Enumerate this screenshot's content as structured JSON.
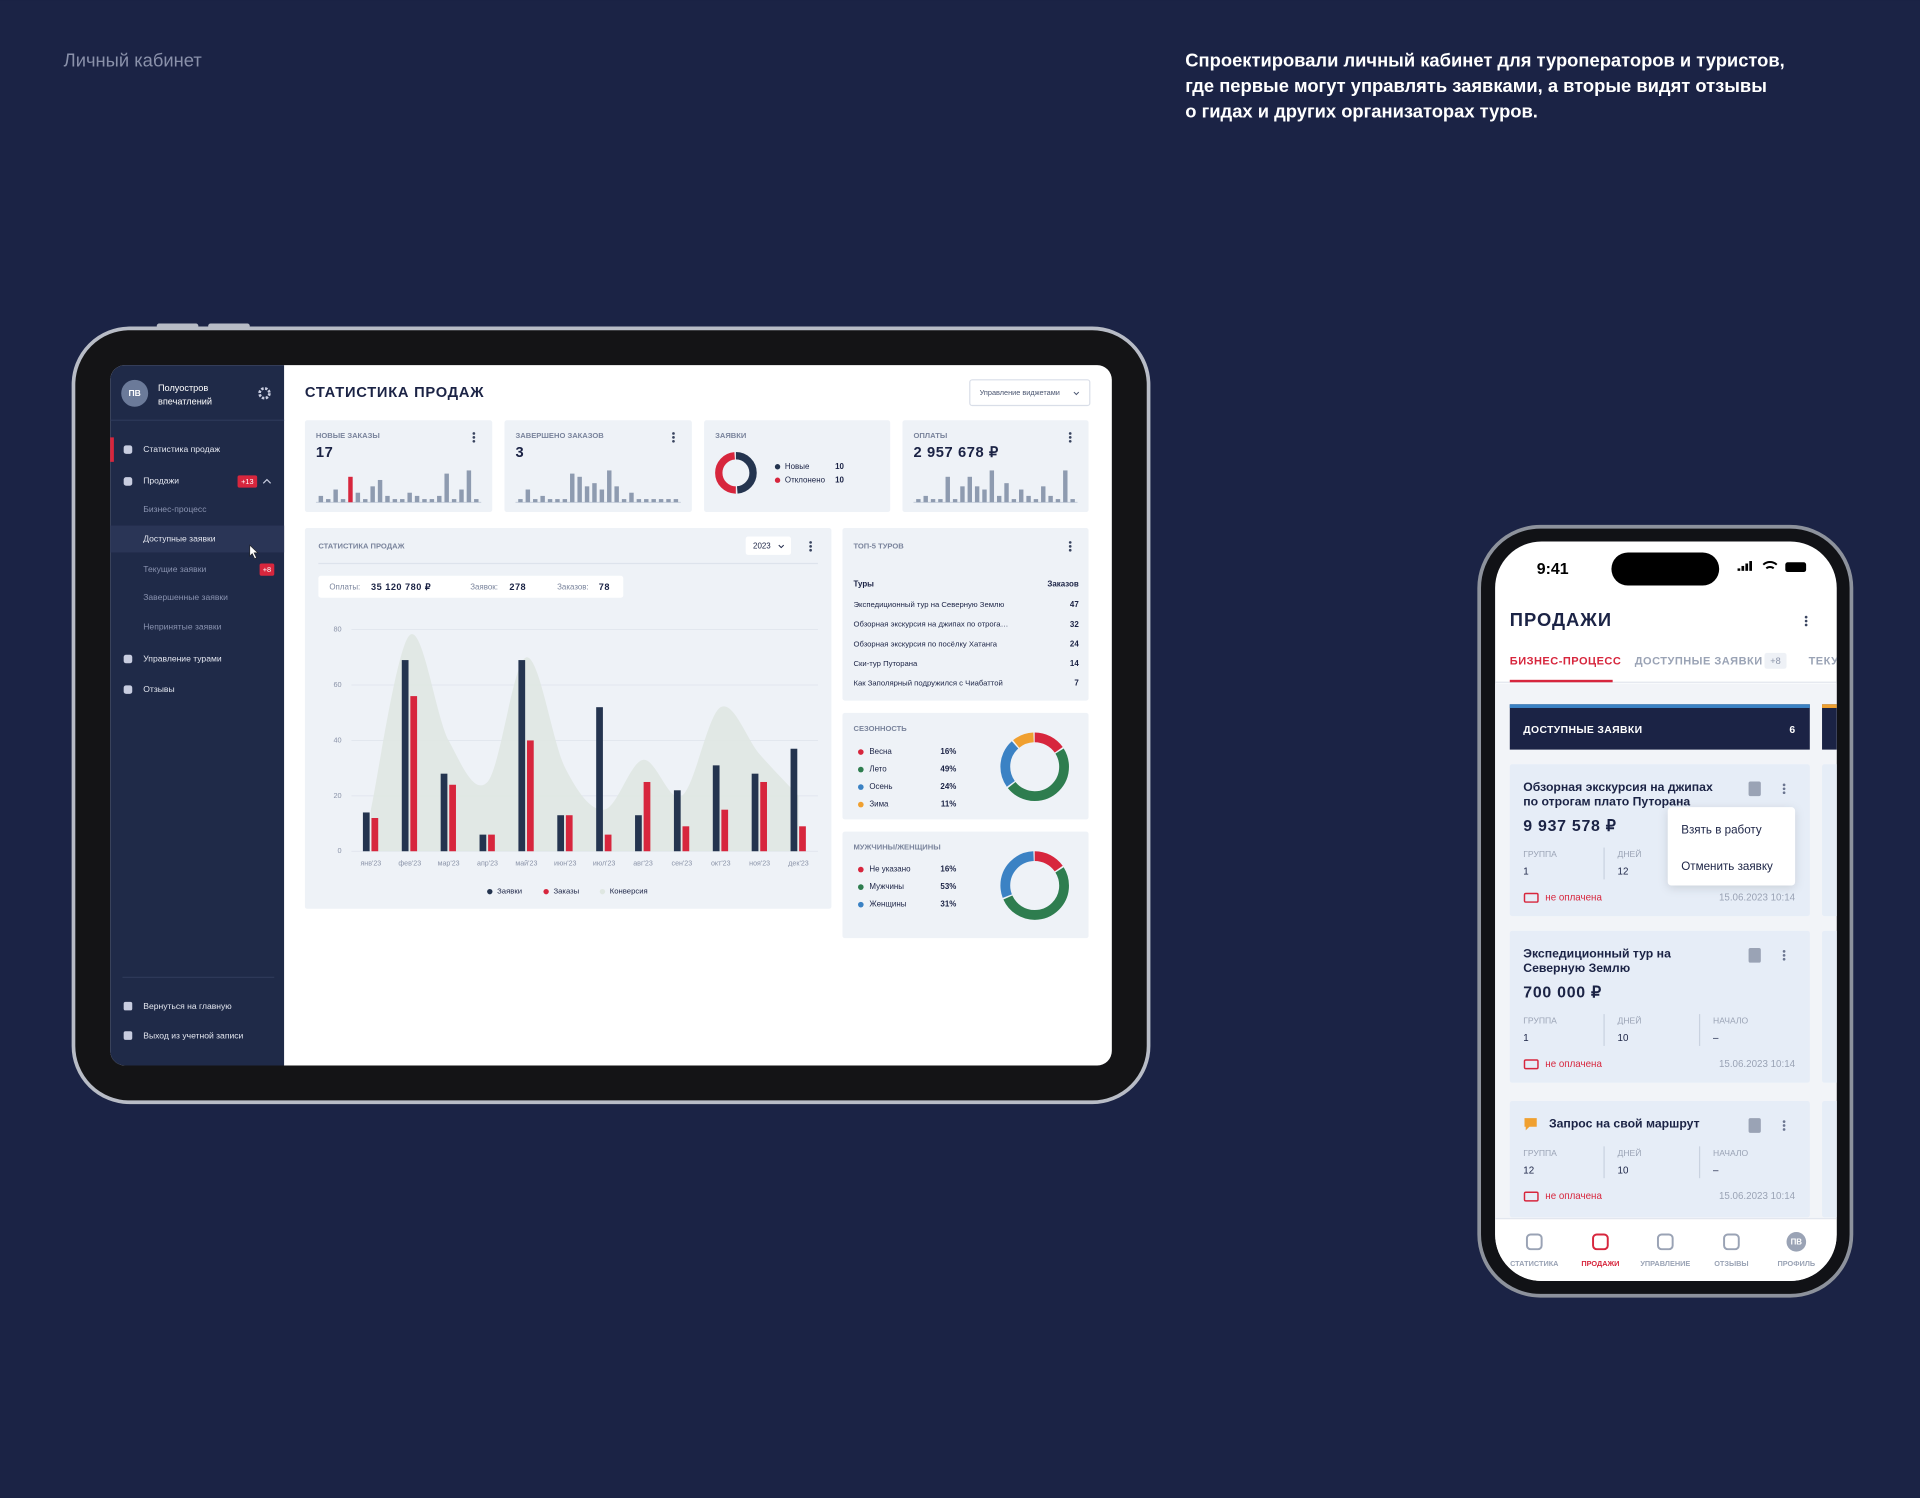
{
  "header": {
    "title": "Личный кабинет",
    "description": [
      "Спроектировали личный кабинет для туроператоров и туристов,",
      "где первые могут управлять заявками, а вторые видят отзывы",
      "о гидах и других организаторах туров."
    ]
  },
  "tablet": {
    "sidebar": {
      "avatar": "ПВ",
      "company": [
        "Полуостров",
        "впечатлений"
      ],
      "menu": [
        {
          "label": "Статистика продаж"
        },
        {
          "label": "Продажи",
          "badge": "+13"
        },
        {
          "label": "Бизнес-процесс"
        },
        {
          "label": "Доступные заявки"
        },
        {
          "label": "Текущие заявки",
          "badge": "+8"
        },
        {
          "label": "Завершенные заявки"
        },
        {
          "label": "Непринятые заявки"
        },
        {
          "label": "Управление турами"
        },
        {
          "label": "Отзывы"
        }
      ],
      "footer": [
        "Вернуться на главную",
        "Выход из учетной записи"
      ]
    },
    "title": "СТАТИСТИКА ПРОДАЖ",
    "widgets_button": "Управление виджетами",
    "cards": [
      {
        "title": "НОВЫЕ ЗАКАЗЫ",
        "value": "17",
        "color": "#8e9bb0",
        "highlight": {
          "index": 4,
          "color": "#d7263d"
        },
        "bars": [
          2,
          1,
          4,
          1,
          8,
          3,
          1,
          5,
          7,
          2,
          1,
          1,
          3,
          2,
          1,
          1,
          2,
          9,
          1,
          4,
          10,
          1
        ]
      },
      {
        "title": "ЗАВЕРШЕНО ЗАКАЗОВ",
        "value": "3",
        "color": "#8e9bb0",
        "bars": [
          1,
          4,
          1,
          2,
          1,
          1,
          1,
          9,
          8,
          5,
          6,
          4,
          10,
          5,
          1,
          3,
          1,
          1,
          1,
          1,
          1,
          1
        ]
      },
      {
        "title": "ЗАЯВКИ",
        "type": "pie",
        "categories": [
          "Новые",
          "Отклонено"
        ],
        "values": [
          10,
          10
        ],
        "colors": [
          "#24344f",
          "#d7263d"
        ]
      },
      {
        "title": "ОПЛАТЫ",
        "value": "2 957 678 ₽",
        "color": "#8e9bb0",
        "bars": [
          1,
          2,
          1,
          1,
          8,
          1,
          5,
          8,
          5,
          4,
          10,
          2,
          6,
          1,
          4,
          2,
          1,
          5,
          2,
          1,
          10,
          1
        ]
      }
    ],
    "sales_chart": {
      "type": "bar",
      "title": "СТАТИСТИКА ПРОДАЖ",
      "year": "2023",
      "summary": [
        {
          "label": "Оплаты:",
          "value": "35 120 780 ₽"
        },
        {
          "label": "Заявок:",
          "value": "278"
        },
        {
          "label": "Заказов:",
          "value": "78"
        }
      ],
      "categories": [
        "янв'23",
        "фев'23",
        "мар'23",
        "апр'23",
        "май'23",
        "июн'23",
        "июл'23",
        "авг'23",
        "сен'23",
        "окт'23",
        "ноя'23",
        "дек'23"
      ],
      "series": [
        {
          "name": "Заявки",
          "type": "bar",
          "color": "#24344f",
          "values": [
            14,
            69,
            28,
            6,
            69,
            13,
            52,
            13,
            22,
            31,
            28,
            37
          ]
        },
        {
          "name": "Заказы",
          "type": "bar",
          "color": "#d7263d",
          "values": [
            12,
            56,
            24,
            6,
            40,
            13,
            6,
            25,
            9,
            15,
            25,
            9
          ]
        },
        {
          "name": "Конверсия",
          "type": "area",
          "color": "#dfe7e2",
          "values": [
            15,
            78,
            40,
            25,
            70,
            30,
            15,
            33,
            20,
            52,
            35,
            20
          ]
        }
      ],
      "ylim": [
        0,
        80
      ],
      "yticks": [
        0,
        20,
        40,
        60,
        80
      ],
      "grid": true
    },
    "top_tours": {
      "title": "ТОП-5 ТУРОВ",
      "columns": [
        "Туры",
        "Заказов"
      ],
      "rows": [
        [
          "Экспедиционный тур на Северную Землю",
          "47"
        ],
        [
          "Обзорная экскурсия на джипах по отрога…",
          "32"
        ],
        [
          "Обзорная экскурсия по посёлку Хатанга",
          "24"
        ],
        [
          "Ски-тур Путорана",
          "14"
        ],
        [
          "Как Заполярный подружился с Чиабаттой",
          "7"
        ]
      ]
    },
    "seasonality": {
      "type": "pie",
      "title": "СЕЗОННОСТЬ",
      "categories": [
        "Весна",
        "Лето",
        "Осень",
        "Зима"
      ],
      "values": [
        16,
        49,
        24,
        11
      ],
      "value_labels": [
        "16%",
        "49%",
        "24%",
        "11%"
      ],
      "colors": [
        "#d7263d",
        "#2e7d4f",
        "#3b82c4",
        "#f0a030"
      ]
    },
    "gender": {
      "type": "pie",
      "title": "МУЖЧИНЫ/ЖЕНЩИНЫ",
      "categories": [
        "Не указано",
        "Мужчины",
        "Женщины"
      ],
      "values": [
        16,
        53,
        31
      ],
      "value_labels": [
        "16%",
        "53%",
        "31%"
      ],
      "colors": [
        "#d7263d",
        "#2e7d4f",
        "#3b82c4"
      ]
    }
  },
  "phone": {
    "time": "9:41",
    "title": "ПРОДАЖИ",
    "tabs": [
      {
        "label": "БИЗНЕС-ПРОЦЕСС"
      },
      {
        "label": "ДОСТУПНЫЕ ЗАЯВКИ",
        "badge": "+8"
      },
      {
        "label": "ТЕКУЩИЕ ЗАЯВКИ"
      }
    ],
    "column": {
      "title": "ДОСТУПНЫЕ ЗАЯВКИ",
      "count": "6"
    },
    "cards": [
      {
        "title": [
          "Обзорная экскурсия на джипах",
          "по отрогам плато Путорана"
        ],
        "price": "9 937 578 ₽",
        "fields": [
          {
            "label": "ГРУППА",
            "value": "1"
          },
          {
            "label": "ДНЕЙ",
            "value": "12"
          }
        ],
        "status": "не оплачена",
        "date": "15.06.2023 10:14",
        "menu": [
          "Взять в работу",
          "Отменить заявку"
        ]
      },
      {
        "title": [
          "Экспедиционный тур на",
          "Северную Землю"
        ],
        "price": "700 000 ₽",
        "fields": [
          {
            "label": "ГРУППА",
            "value": "1"
          },
          {
            "label": "ДНЕЙ",
            "value": "10"
          },
          {
            "label": "НАЧАЛО",
            "value": "–"
          }
        ],
        "status": "не оплачена",
        "date": "15.06.2023 10:14"
      },
      {
        "title": [
          "Запрос на свой маршрут"
        ],
        "fields": [
          {
            "label": "ГРУППА",
            "value": "12"
          },
          {
            "label": "ДНЕЙ",
            "value": "10"
          },
          {
            "label": "НАЧАЛО",
            "value": "–"
          }
        ],
        "status": "не оплачена",
        "date": "15.06.2023 10:14"
      }
    ],
    "nav": [
      "СТАТИСТИКА",
      "ПРОДАЖИ",
      "УПРАВЛЕНИЕ",
      "ОТЗЫВЫ",
      "ПРОФИЛЬ"
    ],
    "avatar": "ПВ"
  }
}
